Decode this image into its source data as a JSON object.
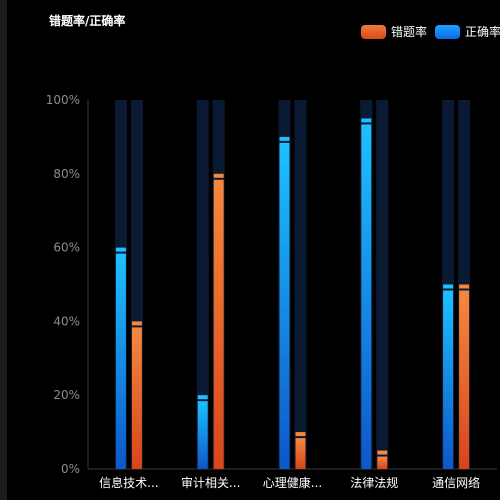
{
  "title": "错题率/正确率",
  "legend": {
    "wrong_label": "错题率",
    "right_label": "正确率"
  },
  "colors": {
    "background": "#000000",
    "track": "#0b1a33",
    "correct_top": "#1ec0ff",
    "correct_bottom": "#0d57c9",
    "wrong_top": "#f5883d",
    "wrong_bottom": "#d8451a",
    "axis_text": "#8c8c8c",
    "category_text": "#ffffff"
  },
  "chart_data": {
    "type": "bar",
    "categories": [
      "信息技术...",
      "审计相关...",
      "心理健康...",
      "法律法规",
      "通信网络"
    ],
    "series": [
      {
        "name": "正确率",
        "values": [
          60,
          20,
          90,
          95,
          50
        ]
      },
      {
        "name": "错题率",
        "values": [
          40,
          80,
          10,
          5,
          50
        ]
      }
    ],
    "y_ticks": [
      "0%",
      "20%",
      "40%",
      "60%",
      "80%",
      "100%"
    ],
    "ylim": [
      0,
      100
    ],
    "legend_position": "top-right",
    "grid": false
  }
}
